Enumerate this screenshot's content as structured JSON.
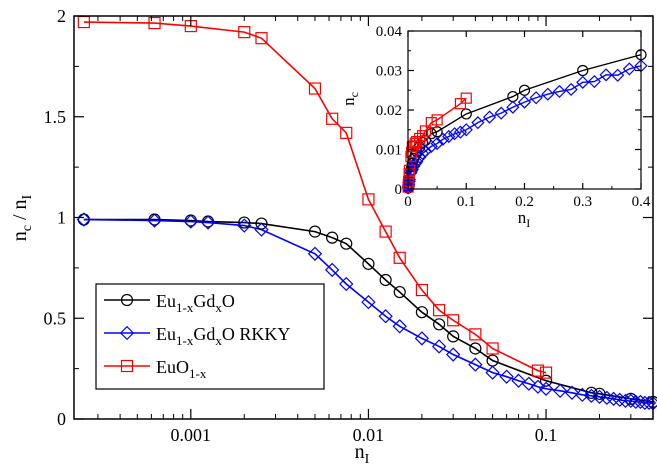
{
  "chart_data": [
    {
      "type": "line",
      "xscale": "log",
      "xlim": [
        0.00022,
        0.4
      ],
      "ylim": [
        0,
        2
      ],
      "xlabel": "n",
      "xlabel_sub": "I",
      "ylabel": "n",
      "ylabel_sub": "c",
      "ylabel_mid": " / n",
      "ylabel_sub2": "I",
      "xticks": [
        {
          "value": 0.001,
          "label": "0.001"
        },
        {
          "value": 0.01,
          "label": "0.01"
        },
        {
          "value": 0.1,
          "label": "0.1"
        }
      ],
      "yticks": [
        {
          "value": 0,
          "label": "0"
        },
        {
          "value": 0.5,
          "label": "0.5"
        },
        {
          "value": 1,
          "label": "1"
        },
        {
          "value": 1.5,
          "label": "1.5"
        },
        {
          "value": 2,
          "label": "2"
        }
      ],
      "legend_position": "bottom-left",
      "series": [
        {
          "name": "Eu1-xGdxO",
          "legend": {
            "a": "Eu",
            "a_sub": "1-x",
            "b": "Gd",
            "b_sub": "x",
            "c": "O"
          },
          "color": "#000000",
          "marker": "circle",
          "x": [
            0.00025,
            0.000625,
            0.001,
            0.00125,
            0.002,
            0.0025,
            0.005,
            0.00625,
            0.0075,
            0.01,
            0.0125,
            0.015,
            0.02,
            0.025,
            0.03,
            0.04,
            0.05,
            0.1,
            0.18,
            0.2,
            0.3,
            0.4
          ],
          "y": [
            0.99,
            0.99,
            0.985,
            0.98,
            0.975,
            0.97,
            0.93,
            0.9,
            0.87,
            0.77,
            0.69,
            0.63,
            0.53,
            0.47,
            0.41,
            0.35,
            0.29,
            0.19,
            0.13,
            0.125,
            0.1,
            0.085
          ]
        },
        {
          "name": "Eu1-xGdxO RKKY",
          "legend": {
            "a": "Eu",
            "a_sub": "1-x",
            "b": "Gd",
            "b_sub": "x",
            "c": "O RKKY"
          },
          "color": "#0000ff",
          "marker": "diamond",
          "x": [
            0.00025,
            0.000625,
            0.001,
            0.00125,
            0.002,
            0.0025,
            0.005,
            0.00625,
            0.0075,
            0.01,
            0.0125,
            0.015,
            0.02,
            0.025,
            0.03,
            0.04,
            0.05,
            0.06,
            0.07,
            0.08,
            0.09,
            0.1,
            0.12,
            0.14,
            0.16,
            0.18,
            0.2,
            0.22,
            0.24,
            0.26,
            0.28,
            0.3,
            0.32,
            0.34,
            0.36,
            0.38,
            0.4
          ],
          "y": [
            0.99,
            0.985,
            0.98,
            0.975,
            0.96,
            0.94,
            0.82,
            0.74,
            0.67,
            0.58,
            0.51,
            0.46,
            0.4,
            0.36,
            0.32,
            0.27,
            0.23,
            0.21,
            0.19,
            0.175,
            0.16,
            0.15,
            0.14,
            0.13,
            0.12,
            0.115,
            0.11,
            0.105,
            0.1,
            0.095,
            0.09,
            0.09,
            0.085,
            0.085,
            0.08,
            0.08,
            0.078
          ]
        },
        {
          "name": "EuO1-x",
          "legend": {
            "a": "EuO",
            "a_sub": "1-x",
            "b": "",
            "b_sub": "",
            "c": ""
          },
          "color": "#ff0000",
          "marker": "square",
          "x": [
            0.00025,
            0.000625,
            0.001,
            0.002,
            0.0025,
            0.005,
            0.00625,
            0.0075,
            0.01,
            0.0125,
            0.015,
            0.02,
            0.025,
            0.03,
            0.04,
            0.05,
            0.09,
            0.1
          ],
          "y": [
            1.97,
            1.965,
            1.95,
            1.92,
            1.89,
            1.64,
            1.49,
            1.42,
            1.09,
            0.93,
            0.8,
            0.64,
            0.54,
            0.49,
            0.42,
            0.35,
            0.24,
            0.23
          ]
        }
      ]
    },
    {
      "type": "line",
      "xlim": [
        0,
        0.4
      ],
      "ylim": [
        0,
        0.04
      ],
      "xlabel": "n",
      "xlabel_sub": "I",
      "ylabel": "n",
      "ylabel_sub": "c",
      "xticks": [
        {
          "value": 0,
          "label": "0"
        },
        {
          "value": 0.1,
          "label": "0.1"
        },
        {
          "value": 0.2,
          "label": "0.2"
        },
        {
          "value": 0.3,
          "label": "0.3"
        },
        {
          "value": 0.4,
          "label": "0.4"
        }
      ],
      "yticks": [
        {
          "value": 0,
          "label": "0"
        },
        {
          "value": 0.01,
          "label": "0.01"
        },
        {
          "value": 0.02,
          "label": "0.02"
        },
        {
          "value": 0.03,
          "label": "0.03"
        },
        {
          "value": 0.04,
          "label": "0.04"
        }
      ],
      "series": [
        {
          "color": "#000000",
          "marker": "circle",
          "x": [
            0.00025,
            0.000625,
            0.001,
            0.00125,
            0.002,
            0.0025,
            0.005,
            0.00625,
            0.0075,
            0.01,
            0.0125,
            0.015,
            0.02,
            0.025,
            0.03,
            0.04,
            0.05,
            0.1,
            0.18,
            0.2,
            0.3,
            0.4
          ],
          "y": [
            0.00025,
            0.00062,
            0.00099,
            0.00123,
            0.00195,
            0.00243,
            0.00465,
            0.00563,
            0.00653,
            0.0077,
            0.00863,
            0.00945,
            0.0106,
            0.0118,
            0.0123,
            0.014,
            0.0145,
            0.019,
            0.0234,
            0.025,
            0.03,
            0.034
          ]
        },
        {
          "color": "#0000ff",
          "marker": "diamond",
          "x": [
            0.00025,
            0.000625,
            0.001,
            0.00125,
            0.002,
            0.0025,
            0.005,
            0.00625,
            0.0075,
            0.01,
            0.0125,
            0.015,
            0.02,
            0.025,
            0.03,
            0.04,
            0.05,
            0.06,
            0.07,
            0.08,
            0.09,
            0.1,
            0.12,
            0.14,
            0.16,
            0.18,
            0.2,
            0.22,
            0.24,
            0.26,
            0.28,
            0.3,
            0.32,
            0.34,
            0.36,
            0.38,
            0.4
          ],
          "y": [
            0.00025,
            0.00062,
            0.00098,
            0.00122,
            0.00192,
            0.00235,
            0.0041,
            0.00463,
            0.005,
            0.0058,
            0.0064,
            0.0069,
            0.008,
            0.009,
            0.0096,
            0.0108,
            0.0115,
            0.0126,
            0.0133,
            0.014,
            0.0144,
            0.015,
            0.0168,
            0.0182,
            0.0192,
            0.0207,
            0.022,
            0.0231,
            0.024,
            0.0247,
            0.0252,
            0.027,
            0.0272,
            0.0289,
            0.0288,
            0.0304,
            0.0312
          ]
        },
        {
          "color": "#ff0000",
          "marker": "square",
          "x": [
            0.00025,
            0.000625,
            0.001,
            0.002,
            0.0025,
            0.005,
            0.00625,
            0.0075,
            0.01,
            0.0125,
            0.015,
            0.02,
            0.025,
            0.03,
            0.04,
            0.05,
            0.09,
            0.1
          ],
          "y": [
            0.00049,
            0.00123,
            0.00195,
            0.00384,
            0.00473,
            0.0082,
            0.0093,
            0.0107,
            0.0109,
            0.0116,
            0.012,
            0.0128,
            0.0135,
            0.0147,
            0.0168,
            0.0175,
            0.0216,
            0.023
          ]
        }
      ]
    }
  ]
}
